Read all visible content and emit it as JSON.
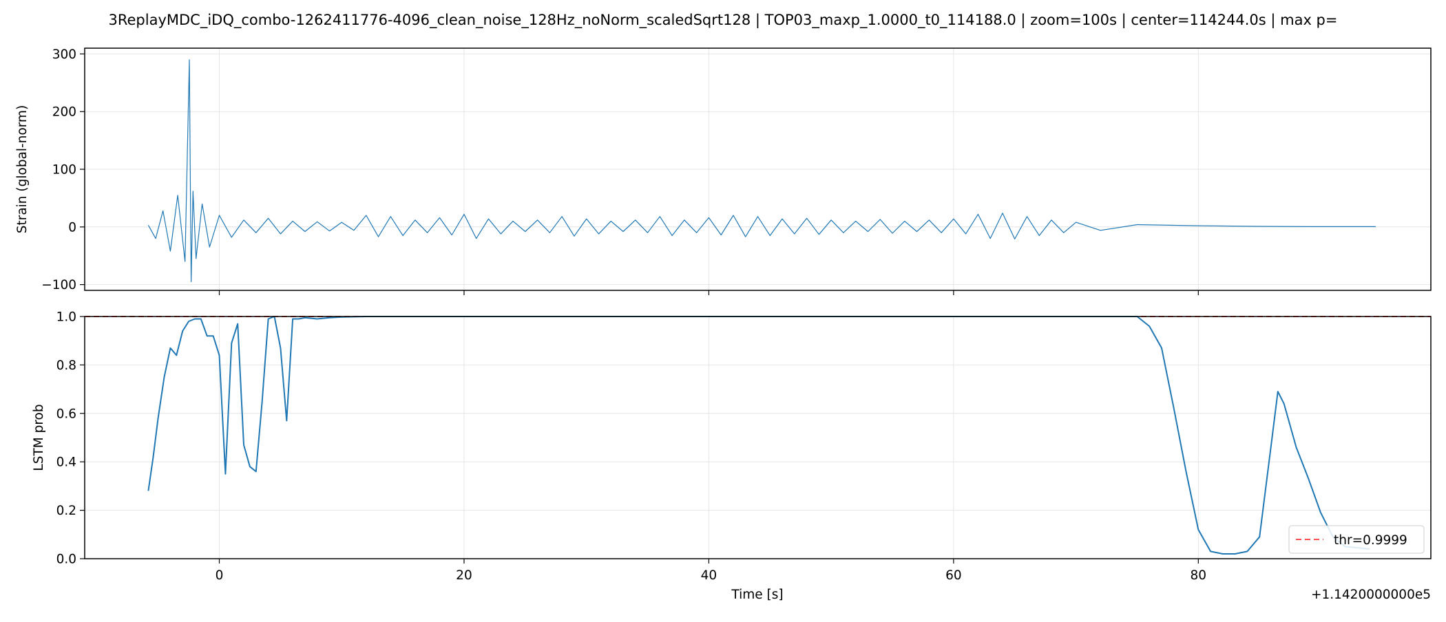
{
  "chart_data": [
    {
      "type": "line",
      "title": "3ReplayMDC_iDQ_combo-1262411776-4096_clean_noise_128Hz_noNorm_scaledSqrt128 | TOP03_maxp_1.0000_t0_114188.0 | zoom=100s | center=114244.0s | max p=",
      "xlabel": "",
      "ylabel": "Strain (global-norm)",
      "xlim": [
        -11,
        99
      ],
      "ylim": [
        -110,
        310
      ],
      "yticks": [
        -100,
        0,
        100,
        200,
        300
      ],
      "xticks": [
        0,
        20,
        40,
        60,
        80
      ],
      "grid": true,
      "series": [
        {
          "color": "#1f77b4",
          "x": [
            -5.8,
            -5.2,
            -4.6,
            -4.0,
            -3.4,
            -2.8,
            -2.45,
            -2.3,
            -2.15,
            -1.9,
            -1.4,
            -0.8,
            0,
            1,
            2,
            3,
            4,
            5,
            6,
            7,
            8,
            9,
            10,
            11,
            12,
            13,
            14,
            15,
            16,
            17,
            18,
            19,
            20,
            21,
            22,
            23,
            24,
            25,
            26,
            27,
            28,
            29,
            30,
            31,
            32,
            33,
            34,
            35,
            36,
            37,
            38,
            39,
            40,
            41,
            42,
            43,
            44,
            45,
            46,
            47,
            48,
            49,
            50,
            51,
            52,
            53,
            54,
            55,
            56,
            57,
            58,
            59,
            60,
            61,
            62,
            63,
            64,
            65,
            66,
            67,
            68,
            69,
            70,
            72,
            75,
            80,
            85,
            90,
            94.5
          ],
          "y": [
            3,
            -20,
            28,
            -42,
            55,
            -60,
            290,
            -95,
            62,
            -55,
            40,
            -35,
            20,
            -18,
            12,
            -10,
            15,
            -12,
            10,
            -8,
            9,
            -7,
            8,
            -6,
            20,
            -17,
            18,
            -15,
            12,
            -10,
            16,
            -14,
            22,
            -20,
            14,
            -12,
            10,
            -8,
            12,
            -10,
            18,
            -16,
            14,
            -12,
            10,
            -8,
            12,
            -10,
            18,
            -15,
            12,
            -10,
            16,
            -14,
            20,
            -17,
            18,
            -15,
            14,
            -12,
            15,
            -13,
            12,
            -10,
            10,
            -8,
            13,
            -11,
            10,
            -8,
            12,
            -10,
            14,
            -12,
            22,
            -20,
            24,
            -21,
            18,
            -15,
            12,
            -10,
            8,
            -6,
            4,
            2,
            1,
            0.5,
            0.5
          ]
        }
      ]
    },
    {
      "type": "line",
      "xlabel": "Time [s]",
      "ylabel": "LSTM prob",
      "offset_label": "+1.1420000000e5",
      "xlim": [
        -11,
        99
      ],
      "ylim": [
        0,
        1
      ],
      "yticks": [
        0.0,
        0.2,
        0.4,
        0.6,
        0.8,
        1.0
      ],
      "xticks": [
        0,
        20,
        40,
        60,
        80
      ],
      "grid": true,
      "threshold": {
        "value": 0.9999,
        "label": "thr=0.9999",
        "color": "#ff4d4d"
      },
      "legend": "bottom-right",
      "series": [
        {
          "color": "#1f77b4",
          "x": [
            -5.8,
            -5.4,
            -5.0,
            -4.5,
            -4.0,
            -3.5,
            -3.0,
            -2.5,
            -2.0,
            -1.5,
            -1.0,
            -0.5,
            0.0,
            0.5,
            1.0,
            1.5,
            2.0,
            2.5,
            3.0,
            3.5,
            4.0,
            4.5,
            5.0,
            5.5,
            6.0,
            6.5,
            7.0,
            8.0,
            9.0,
            10.0,
            12.0,
            20.0,
            40.0,
            60.0,
            75.0,
            76.0,
            77.0,
            78.0,
            79.0,
            80.0,
            81.0,
            82.0,
            83.0,
            84.0,
            85.0,
            86.0,
            86.5,
            87.0,
            88.0,
            89.0,
            90.0,
            91.0,
            92.0,
            94.0
          ],
          "y": [
            0.28,
            0.42,
            0.58,
            0.75,
            0.87,
            0.84,
            0.94,
            0.98,
            0.99,
            0.99,
            0.92,
            0.92,
            0.84,
            0.35,
            0.89,
            0.97,
            0.47,
            0.38,
            0.36,
            0.65,
            0.99,
            1.0,
            0.87,
            0.57,
            0.99,
            0.99,
            0.995,
            0.99,
            0.995,
            0.998,
            1.0,
            1.0,
            1.0,
            1.0,
            1.0,
            0.96,
            0.87,
            0.62,
            0.36,
            0.12,
            0.03,
            0.02,
            0.02,
            0.03,
            0.09,
            0.49,
            0.69,
            0.64,
            0.46,
            0.33,
            0.19,
            0.09,
            0.05,
            0.04
          ]
        }
      ]
    }
  ]
}
